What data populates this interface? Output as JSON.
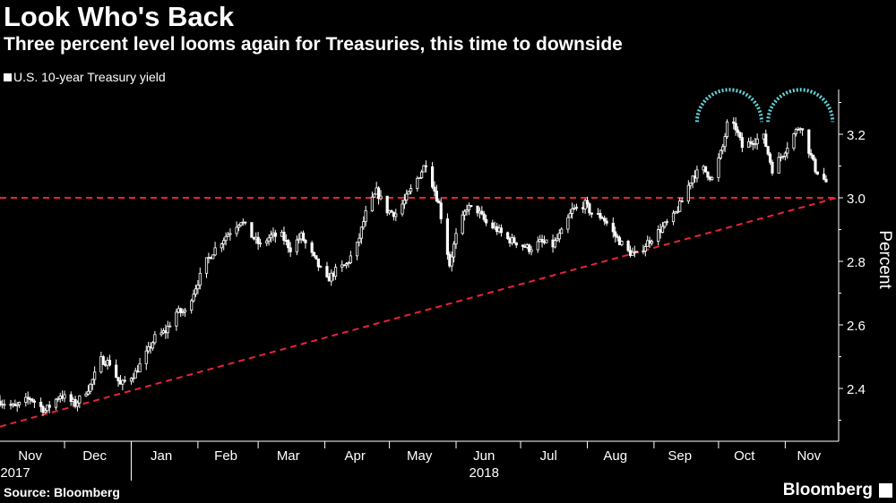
{
  "title": "Look Who's Back",
  "subtitle": "Three percent level looms again for Treasuries, this time to downside",
  "legend_label": "U.S. 10-year Treasury yield",
  "source": "Source: Bloomberg",
  "brand": "Bloomberg",
  "colors": {
    "background": "#000000",
    "candles": "#ffffff",
    "reference_lines": "#e8233a",
    "arcs": "#5fd3d8"
  },
  "chart_data": {
    "type": "candlestick",
    "title": "Look Who's Back",
    "subtitle": "Three percent level looms again for Treasuries, this time to downside",
    "series_name": "U.S. 10-year Treasury yield",
    "ylabel": "Percent",
    "ylim": [
      2.2,
      3.36
    ],
    "yticks": [
      2.4,
      2.6,
      2.8,
      3.0,
      3.2
    ],
    "ytick_labels": [
      "2.4",
      "2.6",
      "2.8",
      "3.0",
      "3.2"
    ],
    "xlim": [
      "2017-11-01",
      "2018-11-20"
    ],
    "month_labels": [
      {
        "label": "Nov",
        "date": "2017-11-15"
      },
      {
        "label": "Dec",
        "date": "2017-12-15"
      },
      {
        "label": "Jan",
        "date": "2018-01-15"
      },
      {
        "label": "Feb",
        "date": "2018-02-14"
      },
      {
        "label": "Mar",
        "date": "2018-03-15"
      },
      {
        "label": "Apr",
        "date": "2018-04-15"
      },
      {
        "label": "May",
        "date": "2018-05-15"
      },
      {
        "label": "Jun",
        "date": "2018-06-14"
      },
      {
        "label": "Jul",
        "date": "2018-07-14"
      },
      {
        "label": "Aug",
        "date": "2018-08-14"
      },
      {
        "label": "Sep",
        "date": "2018-09-13"
      },
      {
        "label": "Oct",
        "date": "2018-10-13"
      },
      {
        "label": "Nov",
        "date": "2018-11-12"
      }
    ],
    "year_labels": [
      {
        "label": "2017",
        "date": "2017-12-01"
      },
      {
        "label": "2018",
        "date": "2018-06-14"
      }
    ],
    "month_boundaries": [
      "2017-12-01",
      "2018-01-01",
      "2018-02-01",
      "2018-03-01",
      "2018-04-01",
      "2018-05-01",
      "2018-06-01",
      "2018-07-01",
      "2018-08-01",
      "2018-09-01",
      "2018-10-01",
      "2018-11-01"
    ],
    "year_boundary": "2018-01-01",
    "close_path": [
      [
        "2017-11-01",
        2.36
      ],
      [
        "2017-11-08",
        2.34
      ],
      [
        "2017-11-15",
        2.37
      ],
      [
        "2017-11-22",
        2.33
      ],
      [
        "2017-11-29",
        2.38
      ],
      [
        "2017-12-06",
        2.35
      ],
      [
        "2017-12-13",
        2.41
      ],
      [
        "2017-12-18",
        2.49
      ],
      [
        "2017-12-22",
        2.48
      ],
      [
        "2017-12-27",
        2.41
      ],
      [
        "2018-01-03",
        2.45
      ],
      [
        "2018-01-09",
        2.52
      ],
      [
        "2018-01-12",
        2.56
      ],
      [
        "2018-01-17",
        2.58
      ],
      [
        "2018-01-22",
        2.64
      ],
      [
        "2018-01-26",
        2.64
      ],
      [
        "2018-01-31",
        2.72
      ],
      [
        "2018-02-05",
        2.8
      ],
      [
        "2018-02-09",
        2.84
      ],
      [
        "2018-02-14",
        2.88
      ],
      [
        "2018-02-21",
        2.93
      ],
      [
        "2018-02-26",
        2.88
      ],
      [
        "2018-03-02",
        2.85
      ],
      [
        "2018-03-07",
        2.88
      ],
      [
        "2018-03-12",
        2.88
      ],
      [
        "2018-03-16",
        2.84
      ],
      [
        "2018-03-21",
        2.88
      ],
      [
        "2018-03-26",
        2.82
      ],
      [
        "2018-04-02",
        2.74
      ],
      [
        "2018-04-06",
        2.77
      ],
      [
        "2018-04-11",
        2.79
      ],
      [
        "2018-04-16",
        2.85
      ],
      [
        "2018-04-20",
        2.95
      ],
      [
        "2018-04-25",
        3.02
      ],
      [
        "2018-04-30",
        2.96
      ],
      [
        "2018-05-04",
        2.95
      ],
      [
        "2018-05-09",
        3.0
      ],
      [
        "2018-05-14",
        3.06
      ],
      [
        "2018-05-18",
        3.11
      ],
      [
        "2018-05-24",
        2.98
      ],
      [
        "2018-05-29",
        2.79
      ],
      [
        "2018-06-01",
        2.88
      ],
      [
        "2018-06-06",
        2.97
      ],
      [
        "2018-06-11",
        2.96
      ],
      [
        "2018-06-15",
        2.92
      ],
      [
        "2018-06-20",
        2.9
      ],
      [
        "2018-06-25",
        2.87
      ],
      [
        "2018-06-29",
        2.86
      ],
      [
        "2018-07-05",
        2.84
      ],
      [
        "2018-07-10",
        2.86
      ],
      [
        "2018-07-16",
        2.85
      ],
      [
        "2018-07-20",
        2.89
      ],
      [
        "2018-07-25",
        2.96
      ],
      [
        "2018-07-31",
        2.98
      ],
      [
        "2018-08-03",
        2.95
      ],
      [
        "2018-08-08",
        2.94
      ],
      [
        "2018-08-14",
        2.88
      ],
      [
        "2018-08-20",
        2.83
      ],
      [
        "2018-08-24",
        2.82
      ],
      [
        "2018-08-29",
        2.86
      ],
      [
        "2018-09-04",
        2.9
      ],
      [
        "2018-09-10",
        2.94
      ],
      [
        "2018-09-14",
        2.99
      ],
      [
        "2018-09-19",
        3.07
      ],
      [
        "2018-09-24",
        3.09
      ],
      [
        "2018-09-28",
        3.06
      ],
      [
        "2018-10-03",
        3.16
      ],
      [
        "2018-10-05",
        3.23
      ],
      [
        "2018-10-09",
        3.22
      ],
      [
        "2018-10-12",
        3.16
      ],
      [
        "2018-10-17",
        3.18
      ],
      [
        "2018-10-22",
        3.19
      ],
      [
        "2018-10-26",
        3.09
      ],
      [
        "2018-10-31",
        3.14
      ],
      [
        "2018-11-05",
        3.2
      ],
      [
        "2018-11-08",
        3.23
      ],
      [
        "2018-11-12",
        3.15
      ],
      [
        "2018-11-15",
        3.09
      ],
      [
        "2018-11-20",
        3.05
      ]
    ],
    "annotations": {
      "horizontal_line": {
        "y": 3.0,
        "style": "dashed",
        "color": "#e8233a"
      },
      "trend_line": {
        "from": [
          "2017-11-01",
          2.28
        ],
        "to": [
          "2018-11-25",
          3.0
        ],
        "style": "dashed",
        "color": "#e8233a"
      },
      "arcs": [
        {
          "center_date": "2018-10-06",
          "peak_yield": 3.34,
          "color": "#5fd3d8"
        },
        {
          "center_date": "2018-11-08",
          "peak_yield": 3.34,
          "color": "#5fd3d8"
        }
      ]
    }
  }
}
